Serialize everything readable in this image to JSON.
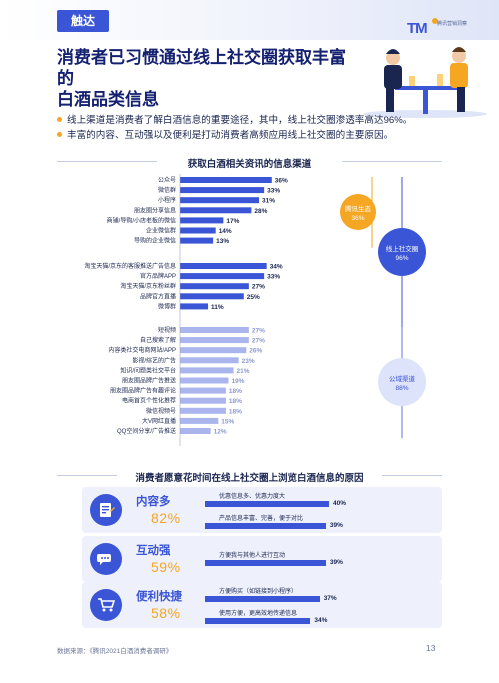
{
  "header": {
    "tag": "触达",
    "logo_mark": "TM",
    "logo_text": "腾讯营销洞察"
  },
  "title": {
    "line1": "消费者已习惯通过线上社交圈获取丰富的",
    "line2": "白酒品类信息"
  },
  "bullets": [
    "线上渠道是消费者了解白酒信息的重要途径，其中，线上社交圈渗透率高达96%。",
    "丰富的内容、互动强以及便利是打动消费者高频应用线上社交圈的主要原因。"
  ],
  "chart_data": [
    {
      "type": "bar",
      "title": "获取白酒相关资讯的信息渠道",
      "groups": [
        {
          "name": "腾讯生态",
          "value": "36%",
          "categories": [
            "公众号",
            "微信群",
            "小程序",
            "朋友圈分享信息",
            "商铺/导购/小店老板的微信",
            "企业微信群",
            "导购的企业微信"
          ],
          "values": [
            36,
            33,
            31,
            28,
            17,
            14,
            13
          ]
        },
        {
          "name": "",
          "categories": [
            "淘宝天猫/京东的客服推送广告信息",
            "官方品牌APP",
            "淘宝天猫/京东粉丝群",
            "品牌官方直播",
            "微博群"
          ],
          "values": [
            34,
            33,
            27,
            25,
            11
          ]
        },
        {
          "name": "公域渠道",
          "value": "88%",
          "categories": [
            "短视频",
            "自己搜索了解",
            "内容类社交电商网站/APP",
            "影视/综艺的广告",
            "知识/问题类社交平台",
            "朋友圈品牌广告推送",
            "朋友圈品牌广告有趣评论",
            "电商首页个性化推荐",
            "微信视频号",
            "大V网红直播",
            "QQ空间分享/广告推送"
          ],
          "values": [
            27,
            27,
            26,
            23,
            21,
            19,
            18,
            18,
            18,
            15,
            12
          ]
        }
      ],
      "summary": {
        "name": "线上社交圈",
        "value": "96%"
      },
      "colors": {
        "primary": "#3a55d6",
        "secondary": "#a9b5ec",
        "accent": "#f5a623"
      }
    },
    {
      "type": "bar",
      "title": "消费者愿意花时间在线上社交圈上浏览白酒信息的原因",
      "reasons": [
        {
          "name": "内容多",
          "pct": "82%",
          "icon": "document-edit-icon",
          "items": [
            {
              "label": "优惠信息多、优惠力度大",
              "value": 40
            },
            {
              "label": "产品信息丰富、完善，便于对比",
              "value": 39
            }
          ]
        },
        {
          "name": "互动强",
          "pct": "59%",
          "icon": "chat-bubble-icon",
          "items": [
            {
              "label": "方便我与其他人进行互动",
              "value": 39
            }
          ]
        },
        {
          "name": "便利快捷",
          "pct": "58%",
          "icon": "shopping-cart-icon",
          "items": [
            {
              "label": "方便购买（如链接到小程序）",
              "value": 37
            },
            {
              "label": "使用方便，更高效地传递信息",
              "value": 34
            }
          ]
        }
      ]
    }
  ],
  "footer": {
    "source": "数据来源：《腾讯2021白酒消费者调研》",
    "page": "13"
  }
}
